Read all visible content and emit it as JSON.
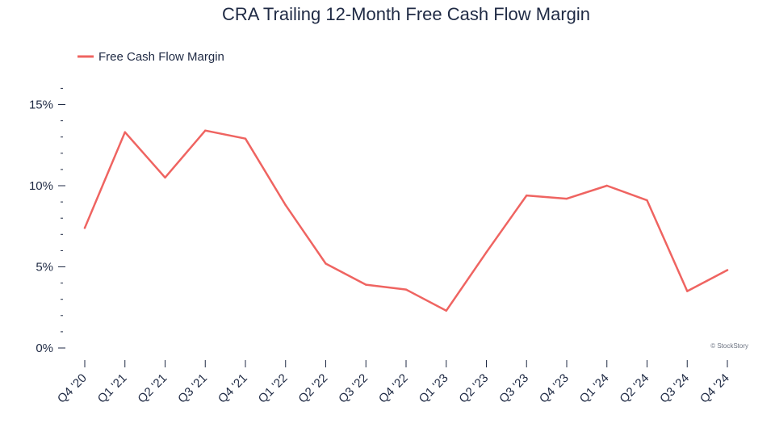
{
  "colors": {
    "series": "#ef6461",
    "text": "#1f2a44",
    "watermark": "#6b7280"
  },
  "watermark": "© StockStory",
  "chart_data": {
    "type": "line",
    "title": "CRA Trailing 12-Month Free Cash Flow Margin",
    "xlabel": "",
    "ylabel": "",
    "categories": [
      "Q4 '20",
      "Q1 '21",
      "Q2 '21",
      "Q3 '21",
      "Q4 '21",
      "Q1 '22",
      "Q2 '22",
      "Q3 '22",
      "Q4 '22",
      "Q1 '23",
      "Q2 '23",
      "Q3 '23",
      "Q4 '23",
      "Q1 '24",
      "Q2 '24",
      "Q3 '24",
      "Q4 '24"
    ],
    "series": [
      {
        "name": "Free Cash Flow Margin",
        "values": [
          7.4,
          13.3,
          10.5,
          13.4,
          12.9,
          8.8,
          5.2,
          3.9,
          3.6,
          2.3,
          5.9,
          9.4,
          9.2,
          10.0,
          9.1,
          3.5,
          4.8
        ]
      }
    ],
    "ylim": [
      0,
      16.5
    ],
    "yticks": [
      0,
      5,
      10,
      15
    ],
    "ytick_labels": [
      "0%",
      "5%",
      "10%",
      "15%"
    ],
    "legend": "top-left",
    "grid": false
  }
}
